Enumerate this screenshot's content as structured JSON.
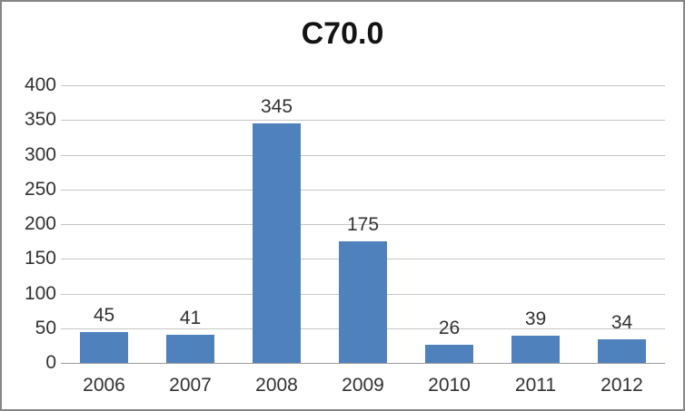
{
  "chart_data": {
    "type": "bar",
    "title": "C70.0",
    "categories": [
      "2006",
      "2007",
      "2008",
      "2009",
      "2010",
      "2011",
      "2012"
    ],
    "values": [
      45,
      41,
      345,
      175,
      26,
      39,
      34
    ],
    "xlabel": "",
    "ylabel": "",
    "ylim": [
      0,
      400
    ],
    "ytick_step": 50,
    "grid": true,
    "legend_position": "none",
    "data_labels": true,
    "colors": {
      "bar_fill": "#4F81BD",
      "gridline": "#C6C6C6",
      "axis_line": "#9B9B9B",
      "tick_text": "#323232",
      "title_text": "#141414",
      "frame_border": "#868686",
      "background": "#FFFFFF"
    }
  }
}
